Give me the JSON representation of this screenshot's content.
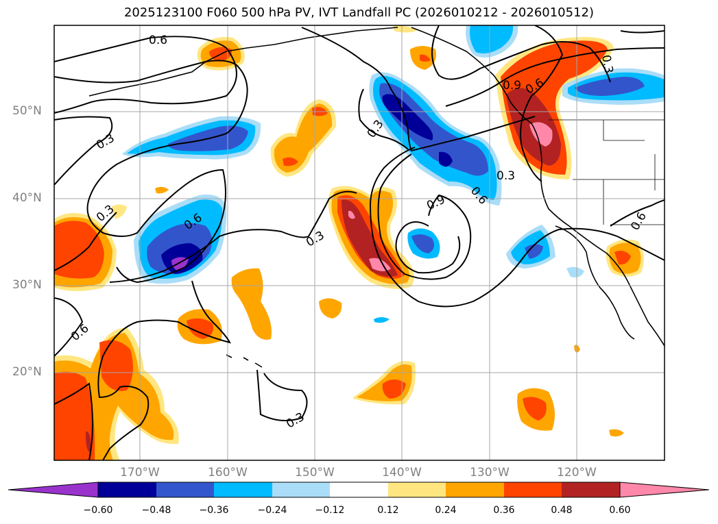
{
  "title": "2025123100 F060 500 hPa PV, IVT Landfall PC (2026010212 - 2026010512)",
  "axes": {
    "lat_labels": [
      "50°N",
      "40°N",
      "30°N",
      "20°N"
    ],
    "lon_labels": [
      "170°W",
      "160°W",
      "150°W",
      "140°W",
      "130°W",
      "120°W"
    ]
  },
  "contour_labels": {
    "c1": "0.6",
    "c2": "0.3",
    "c3": "0.3",
    "c4": "0.6",
    "c5": "0.3",
    "c6": "0.6",
    "c7": "0.3",
    "c8": "0.9",
    "c9": "0.6",
    "c10": "0.3",
    "c11": "0.9",
    "c12": "0.6",
    "c13": "0.3",
    "c14": "0.6",
    "c15": "0.3"
  },
  "colorbar": {
    "ticks": [
      "−0.60",
      "−0.48",
      "−0.36",
      "−0.24",
      "−0.12",
      "0.12",
      "0.24",
      "0.36",
      "0.48",
      "0.60"
    ],
    "colors": [
      "#9933cc",
      "#000099",
      "#3355cc",
      "#00bbff",
      "#aaddf7",
      "#ffffff",
      "#ffe680",
      "#ffa500",
      "#ff4400",
      "#b22222",
      "#ff88aa"
    ]
  },
  "colors": {
    "pink": "#ff88aa",
    "darkred": "#b22222",
    "red": "#ff4400",
    "orange": "#ffa500",
    "yellow": "#ffe680",
    "lightblue": "#aaddf7",
    "cyan": "#00bbff",
    "blue": "#3355cc",
    "navy": "#000099",
    "purple": "#9933cc"
  }
}
